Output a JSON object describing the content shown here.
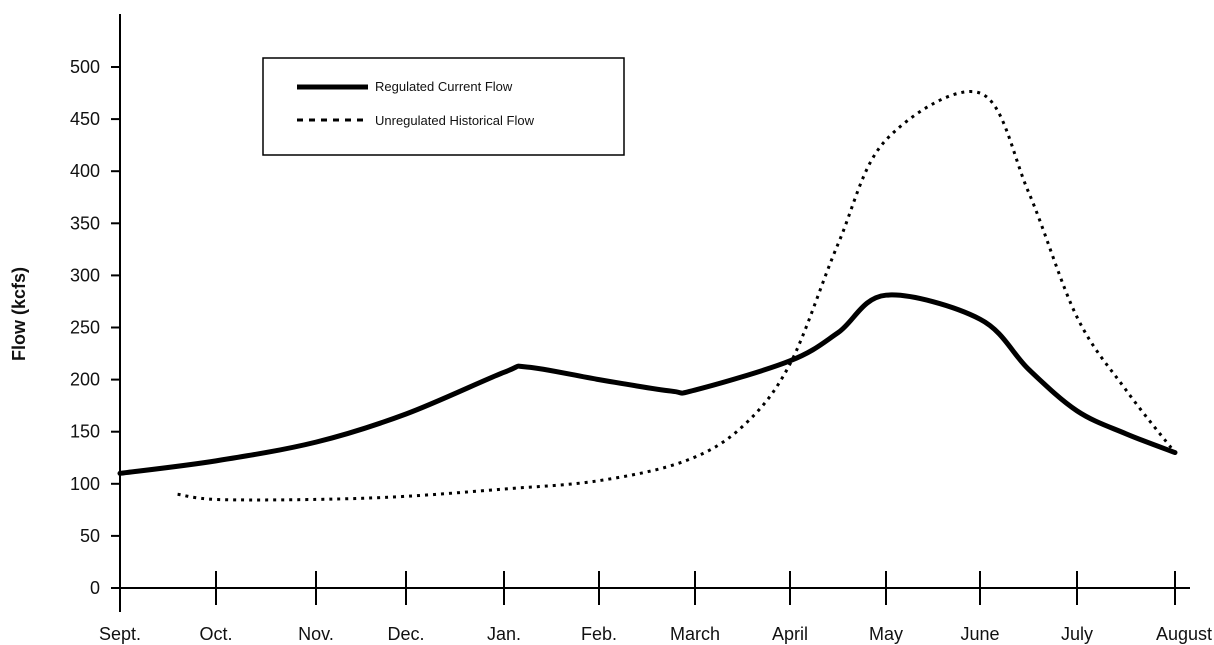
{
  "chart_data": {
    "type": "line",
    "ylabel": "Flow (kcfs)",
    "xlabel": "",
    "ylim": [
      0,
      500
    ],
    "yticks": [
      0,
      50,
      100,
      150,
      200,
      250,
      300,
      350,
      400,
      450,
      500
    ],
    "categories": [
      "Sept.",
      "Oct.",
      "Nov.",
      "Dec.",
      "Jan.",
      "Feb.",
      "March",
      "April",
      "May",
      "June",
      "July",
      "August"
    ],
    "legend_position": "top-left",
    "series": [
      {
        "name": "Regulated Current Flow",
        "style": "solid",
        "color": "#000000",
        "x": [
          0,
          1,
          2,
          3,
          4,
          4.25,
          5,
          5.75,
          6,
          7,
          7.5,
          8,
          9,
          9.5,
          10,
          10.5,
          11
        ],
        "values": [
          110,
          122,
          140,
          167,
          207,
          212,
          200,
          189,
          190,
          218,
          245,
          281,
          258,
          210,
          170,
          148,
          130
        ]
      },
      {
        "name": "Unregulated Historical Flow",
        "style": "dotted",
        "color": "#000000",
        "x": [
          0.6,
          1,
          2,
          3,
          4,
          5,
          5.9,
          6.5,
          7,
          7.5,
          8,
          9,
          9.5,
          10,
          10.5,
          11
        ],
        "values": [
          90,
          85,
          85,
          88,
          95,
          103,
          122,
          155,
          215,
          330,
          430,
          475,
          380,
          260,
          190,
          130
        ]
      }
    ]
  }
}
